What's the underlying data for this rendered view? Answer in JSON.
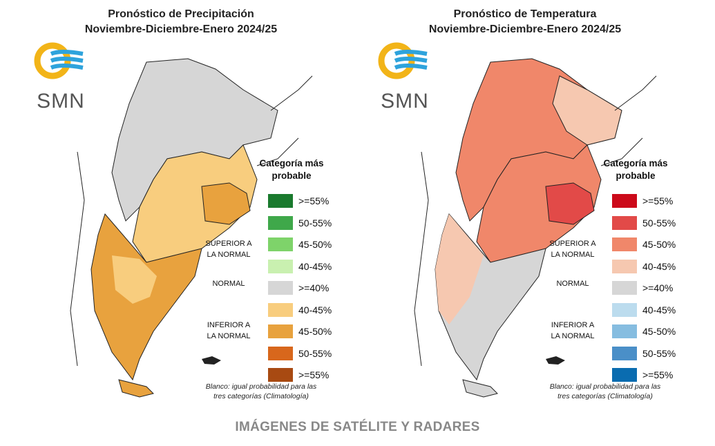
{
  "footer": "IMÁGENES DE SATÉLITE Y RADARES",
  "panels": [
    {
      "title_line1": "Pronóstico de Precipitación",
      "title_line2": "Noviembre-Diciembre-Enero 2024/25",
      "logo_text": "SMN",
      "legend_title_line1": "Categoría más",
      "legend_title_line2": "probable",
      "category_superior_line1": "SUPERIOR A",
      "category_superior_line2": "LA NORMAL",
      "category_normal": "NORMAL",
      "category_inferior_line1": "INFERIOR A",
      "category_inferior_line2": "LA NORMAL",
      "legend": [
        {
          "label": ">=55%",
          "color": "#1a7a2e"
        },
        {
          "label": "50-55%",
          "color": "#3fa84a"
        },
        {
          "label": "45-50%",
          "color": "#7ed36a"
        },
        {
          "label": "40-45%",
          "color": "#c9f0b0"
        },
        {
          "label": ">=40%",
          "color": "#d6d6d6"
        },
        {
          "label": "40-45%",
          "color": "#f8cd7e"
        },
        {
          "label": "45-50%",
          "color": "#e8a23e"
        },
        {
          "label": "50-55%",
          "color": "#d8671c"
        },
        {
          "label": ">=55%",
          "color": "#a84a12"
        }
      ],
      "note_line1": "Blanco: igual probabilidad para las",
      "note_line2": "tres categorías (Climatología)"
    },
    {
      "title_line1": "Pronóstico de Temperatura",
      "title_line2": "Noviembre-Diciembre-Enero 2024/25",
      "logo_text": "SMN",
      "legend_title_line1": "Categoría más",
      "legend_title_line2": "probable",
      "category_superior_line1": "SUPERIOR A",
      "category_superior_line2": "LA NORMAL",
      "category_normal": "NORMAL",
      "category_inferior_line1": "INFERIOR A",
      "category_inferior_line2": "LA NORMAL",
      "legend": [
        {
          "label": ">=55%",
          "color": "#cc0a1a"
        },
        {
          "label": "50-55%",
          "color": "#e24a48"
        },
        {
          "label": "45-50%",
          "color": "#f0876a"
        },
        {
          "label": "40-45%",
          "color": "#f6c8b0"
        },
        {
          "label": ">=40%",
          "color": "#d6d6d6"
        },
        {
          "label": "40-45%",
          "color": "#bcdcee"
        },
        {
          "label": "45-50%",
          "color": "#86bde0"
        },
        {
          "label": "50-55%",
          "color": "#4a8fc8"
        },
        {
          "label": ">=55%",
          "color": "#0a6cb0"
        }
      ],
      "note_line1": "Blanco: igual probabilidad para las",
      "note_line2": "tres categorías (Climatología)"
    }
  ],
  "colors": {
    "logo_sun": "#f2b418",
    "logo_waves": "#2ea3dc",
    "map_border": "#222222",
    "no_data": "#ffffff"
  }
}
